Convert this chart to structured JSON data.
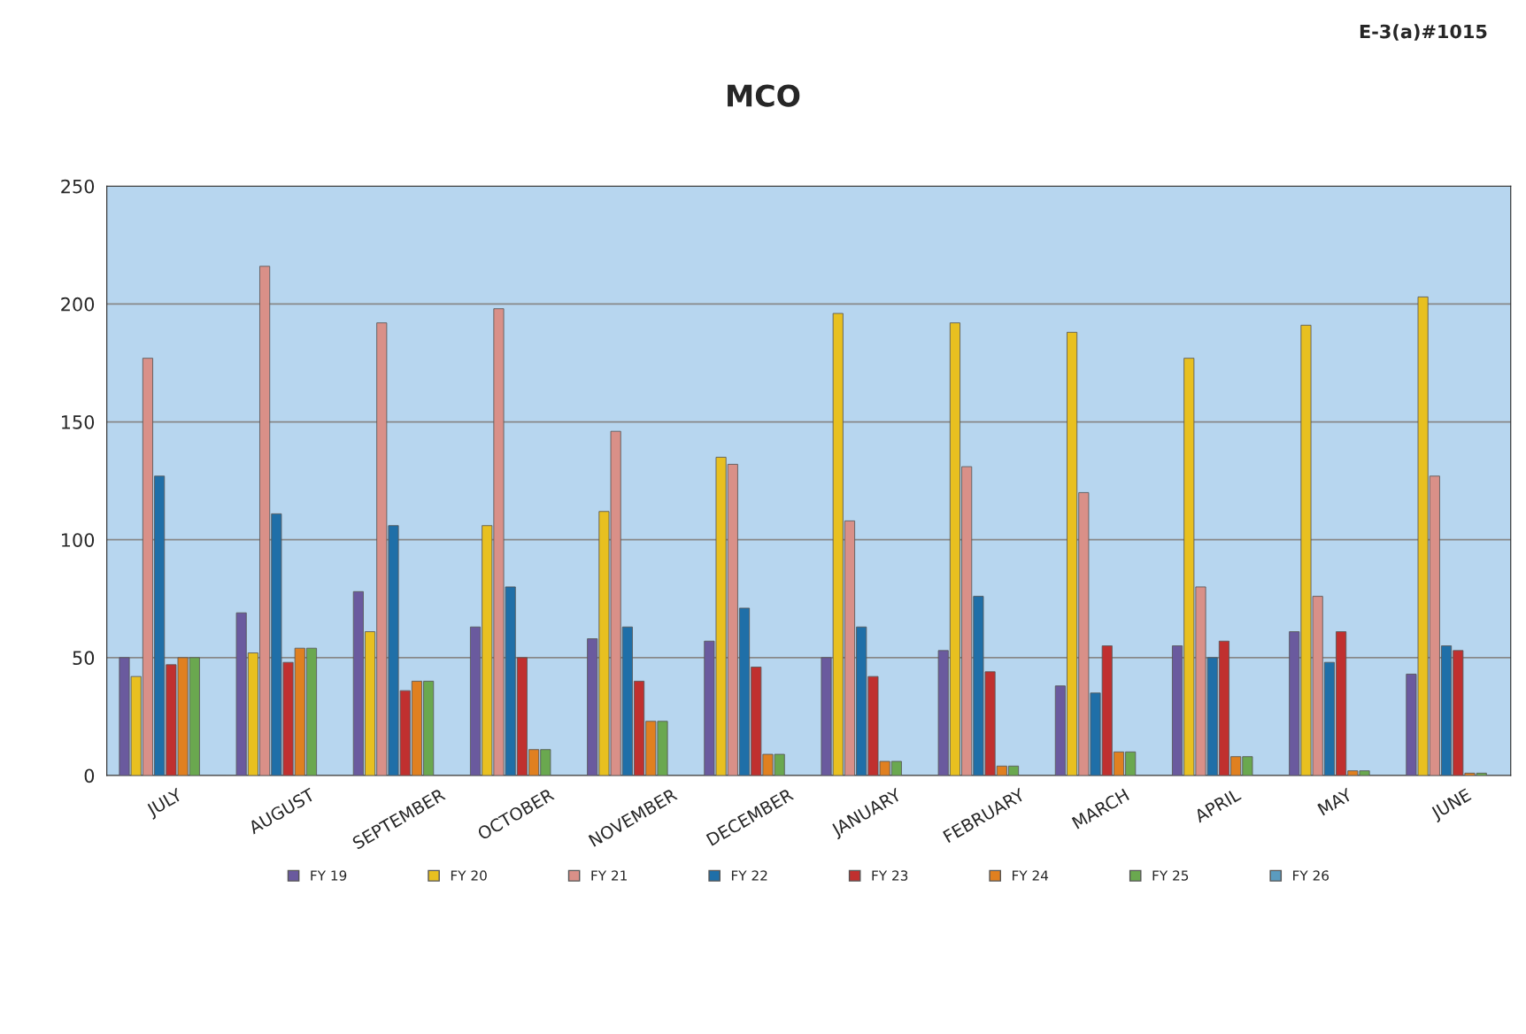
{
  "chart_data": {
    "type": "bar",
    "title": "MCO",
    "annotations": [
      "E-3(a)#1015"
    ],
    "categories": [
      "JULY",
      "AUGUST",
      "SEPTEMBER",
      "OCTOBER",
      "NOVEMBER",
      "DECEMBER",
      "JANUARY",
      "FEBRUARY",
      "MARCH",
      "APRIL",
      "MAY",
      "JUNE"
    ],
    "series": [
      {
        "name": "FY 19",
        "color": "#6a5a9e",
        "values": [
          50,
          69,
          78,
          63,
          58,
          57,
          50,
          53,
          38,
          55,
          61,
          43
        ]
      },
      {
        "name": "FY 20",
        "color": "#e8c020",
        "values": [
          42,
          52,
          61,
          106,
          112,
          135,
          196,
          192,
          188,
          177,
          191,
          203
        ]
      },
      {
        "name": "FY 21",
        "color": "#d99088",
        "values": [
          177,
          216,
          192,
          198,
          146,
          132,
          108,
          131,
          120,
          80,
          76,
          127
        ]
      },
      {
        "name": "FY 22",
        "color": "#1f6fa8",
        "values": [
          127,
          111,
          106,
          80,
          63,
          71,
          63,
          76,
          35,
          50,
          48,
          55
        ]
      },
      {
        "name": "FY 23",
        "color": "#c0302f",
        "values": [
          47,
          48,
          36,
          50,
          40,
          46,
          42,
          44,
          55,
          57,
          61,
          53
        ]
      },
      {
        "name": "FY 24",
        "color": "#e08020",
        "values": [
          50,
          54,
          40,
          11,
          23,
          9,
          6,
          4,
          10,
          8,
          2,
          1
        ]
      },
      {
        "name": "FY 25",
        "color": "#6aa84f",
        "values": [
          50,
          54,
          40,
          11,
          23,
          9,
          6,
          4,
          10,
          8,
          2,
          1
        ]
      },
      {
        "name": "FY 26",
        "color": "#5b9bbf",
        "values": [
          null,
          null,
          null,
          null,
          null,
          null,
          null,
          null,
          null,
          null,
          null,
          null
        ]
      }
    ],
    "ylim": [
      0,
      250
    ],
    "yticks": [
      0,
      50,
      100,
      150,
      200,
      250
    ],
    "grid": "y",
    "legend": "bottom"
  }
}
